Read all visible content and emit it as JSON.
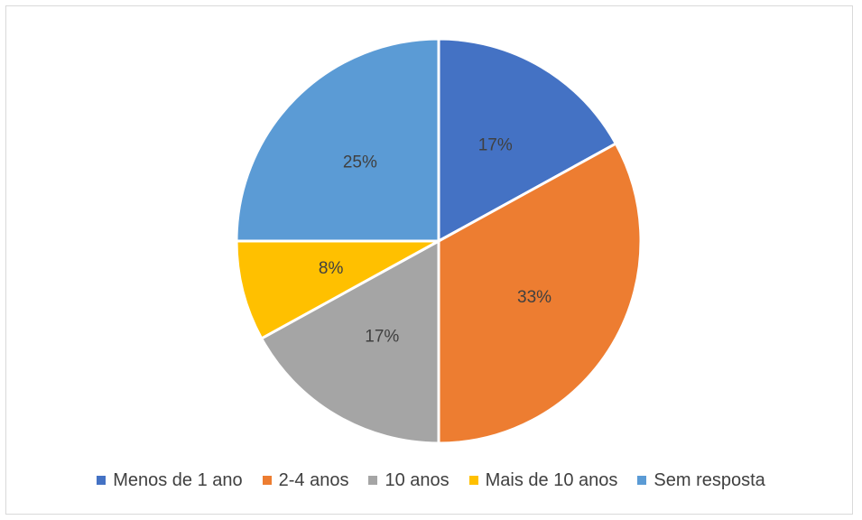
{
  "chart_data": {
    "type": "pie",
    "categories": [
      "Menos de 1 ano",
      "2-4 anos",
      "10 anos",
      "Mais de 10 anos",
      "Sem resposta"
    ],
    "values": [
      17,
      33,
      17,
      8,
      25
    ],
    "data_labels": [
      "17%",
      "33%",
      "17%",
      "8%",
      "25%"
    ],
    "colors": [
      "#4472C4",
      "#ED7D31",
      "#A5A5A5",
      "#FFC000",
      "#5B9BD5"
    ],
    "legend_position": "bottom",
    "start_angle": "12 o'clock, clockwise"
  }
}
